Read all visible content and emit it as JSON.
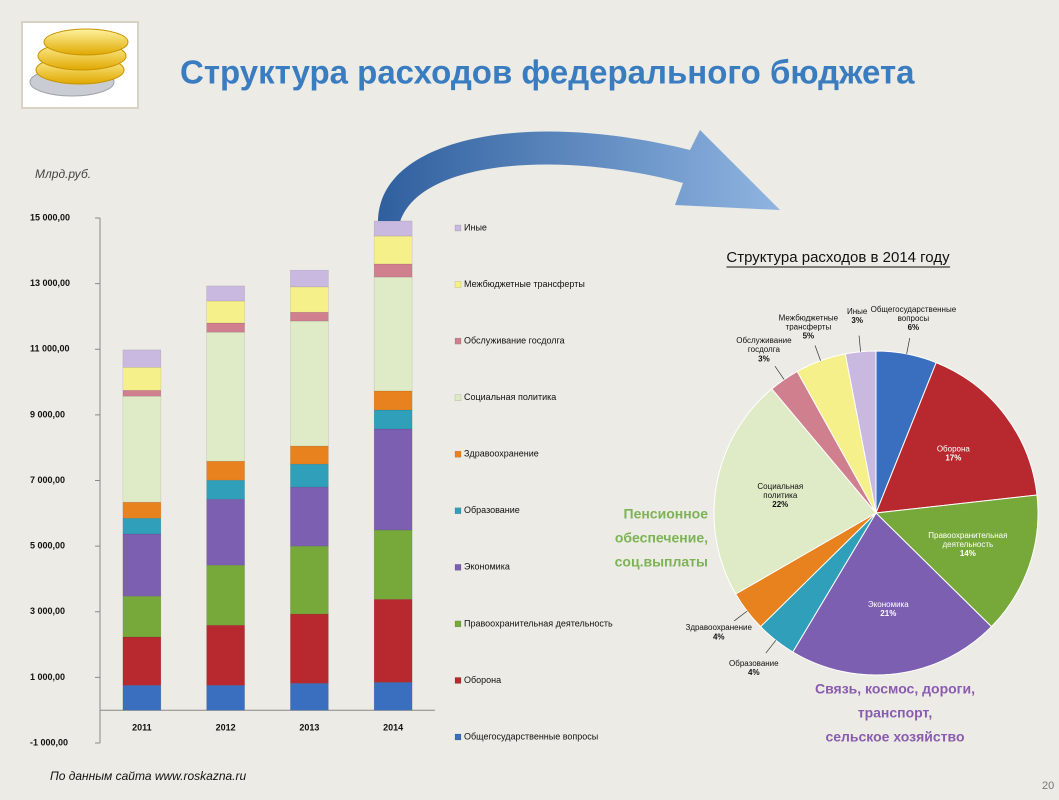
{
  "header": {
    "title": "Структура расходов федерального бюджета"
  },
  "unit_label": "Млрд.руб.",
  "source": "По данным сайта www.roskazna.ru",
  "slide_number": "20",
  "annotations": [
    {
      "lines": [
        "Пенсионное",
        "обеспечение,",
        "соц.выплаты"
      ],
      "color": "#7db356"
    },
    {
      "lines": [
        "Связь, космос, дороги,",
        "транспорт,",
        "сельское хозяйство"
      ],
      "color": "#8a5cb0"
    }
  ],
  "chart_data": [
    {
      "type": "bar",
      "stacked": true,
      "categories": [
        "2011",
        "2012",
        "2013",
        "2014"
      ],
      "ylim": [
        -1000,
        15000
      ],
      "yticks": [
        {
          "value": -1000,
          "label": "-1 000,00"
        },
        {
          "value": 1000,
          "label": "1 000,00"
        },
        {
          "value": 3000,
          "label": "3 000,00"
        },
        {
          "value": 5000,
          "label": "5 000,00"
        },
        {
          "value": 7000,
          "label": "7 000,00"
        },
        {
          "value": 9000,
          "label": "9 000,00"
        },
        {
          "value": 11000,
          "label": "11 000,00"
        },
        {
          "value": 13000,
          "label": "13 000,00"
        },
        {
          "value": 15000,
          "label": "15 000,00"
        }
      ],
      "grid": false,
      "series": [
        {
          "name": "Общегосударственные вопросы",
          "color": "#3a6fbf",
          "values": [
            760,
            760,
            820,
            850
          ]
        },
        {
          "name": "Оборона",
          "color": "#b7292e",
          "values": [
            1470,
            1830,
            2110,
            2530
          ]
        },
        {
          "name": "Правоохранительная деятельность",
          "color": "#77a83a",
          "values": [
            1245,
            1830,
            2070,
            2110
          ]
        },
        {
          "name": "Экономика",
          "color": "#7d5fb2",
          "values": [
            1895,
            2010,
            1800,
            3080
          ]
        },
        {
          "name": "Образование",
          "color": "#2f9fba",
          "values": [
            480,
            580,
            700,
            580
          ]
        },
        {
          "name": "Здравоохранение",
          "color": "#e8821e",
          "values": [
            490,
            580,
            550,
            580
          ]
        },
        {
          "name": "Социальная политика",
          "color": "#dfeac6",
          "values": [
            3230,
            3930,
            3810,
            3470
          ]
        },
        {
          "name": "Обслуживание госдолга",
          "color": "#cf7f8e",
          "values": [
            180,
            280,
            270,
            400
          ]
        },
        {
          "name": "Межбюджетные трансферты",
          "color": "#f6f08a",
          "values": [
            700,
            670,
            770,
            850
          ]
        },
        {
          "name": "Иные",
          "color": "#c9b8df",
          "values": [
            530,
            460,
            510,
            460
          ]
        }
      ]
    },
    {
      "type": "pie",
      "title": "Структура расходов в 2014 году",
      "categories": [
        "Общегосударственные вопросы",
        "Оборона",
        "Правоохранительная деятельность",
        "Экономика",
        "Образование",
        "Здравоохранение",
        "Социальная политика",
        "Обслуживание госдолга",
        "Межбюджетные трансферты",
        "Иные"
      ],
      "values": [
        6,
        17,
        14,
        21,
        4,
        4,
        22,
        3,
        5,
        3
      ],
      "value_labels": [
        "6%",
        "17%",
        "14%",
        "21%",
        "4%",
        "4%",
        "22%",
        "3%",
        "5%",
        "3%"
      ],
      "colors": [
        "#3a6fbf",
        "#b7292e",
        "#77a83a",
        "#7d5fb2",
        "#2f9fba",
        "#e8821e",
        "#dfeac6",
        "#cf7f8e",
        "#f6f08a",
        "#c9b8df"
      ]
    }
  ]
}
